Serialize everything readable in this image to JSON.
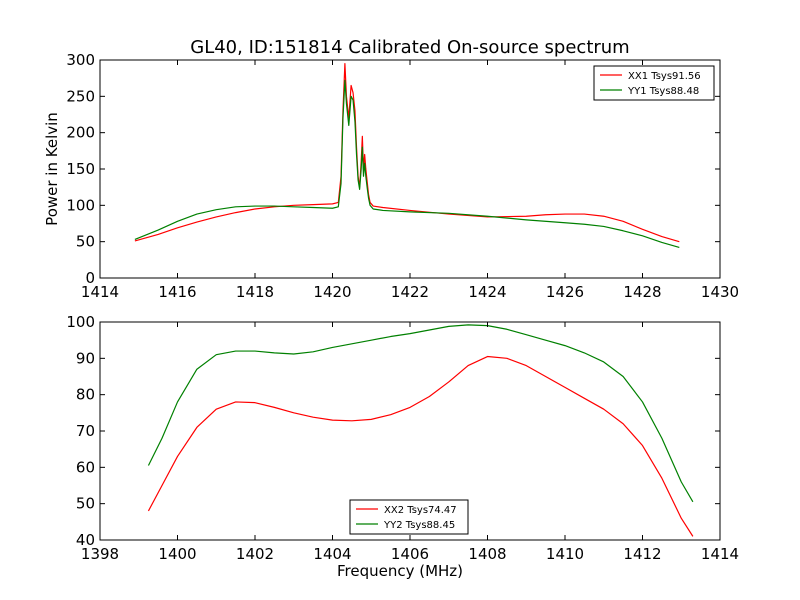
{
  "title": "GL40, ID:151814 Calibrated On-source spectrum",
  "chart_data": [
    {
      "type": "line",
      "ylabel": "Power in Kelvin",
      "xlabel": "",
      "xlim": [
        1414,
        1430
      ],
      "ylim": [
        0,
        300
      ],
      "xticks": [
        "1414",
        "1416",
        "1418",
        "1420",
        "1422",
        "1424",
        "1426",
        "1428",
        "1430"
      ],
      "yticks": [
        "0",
        "50",
        "100",
        "150",
        "200",
        "250",
        "300"
      ],
      "legend_position": "top-right",
      "series": [
        {
          "name": "XX1 Tsys91.56",
          "color": "#ff0000",
          "points": [
            [
              1414.9,
              51
            ],
            [
              1415.5,
              60
            ],
            [
              1416.0,
              69
            ],
            [
              1416.5,
              77
            ],
            [
              1417.0,
              84
            ],
            [
              1417.5,
              90
            ],
            [
              1418.0,
              95
            ],
            [
              1418.5,
              98
            ],
            [
              1419.0,
              100
            ],
            [
              1419.5,
              101
            ],
            [
              1420.0,
              102
            ],
            [
              1420.15,
              104
            ],
            [
              1420.22,
              140
            ],
            [
              1420.27,
              230
            ],
            [
              1420.32,
              295
            ],
            [
              1420.36,
              250
            ],
            [
              1420.42,
              220
            ],
            [
              1420.48,
              265
            ],
            [
              1420.53,
              255
            ],
            [
              1420.58,
              230
            ],
            [
              1420.62,
              180
            ],
            [
              1420.66,
              140
            ],
            [
              1420.7,
              125
            ],
            [
              1420.74,
              160
            ],
            [
              1420.77,
              195
            ],
            [
              1420.8,
              150
            ],
            [
              1420.83,
              170
            ],
            [
              1420.86,
              150
            ],
            [
              1420.9,
              130
            ],
            [
              1420.93,
              115
            ],
            [
              1420.97,
              104
            ],
            [
              1421.05,
              99
            ],
            [
              1421.3,
              97
            ],
            [
              1422.0,
              93
            ],
            [
              1423.0,
              88
            ],
            [
              1424.0,
              84
            ],
            [
              1425.0,
              85
            ],
            [
              1425.5,
              87
            ],
            [
              1426.0,
              88
            ],
            [
              1426.5,
              88
            ],
            [
              1427.0,
              85
            ],
            [
              1427.5,
              78
            ],
            [
              1428.0,
              67
            ],
            [
              1428.5,
              57
            ],
            [
              1428.95,
              50
            ]
          ]
        },
        {
          "name": "YY1 Tsys88.48",
          "color": "#008000",
          "points": [
            [
              1414.9,
              53
            ],
            [
              1415.5,
              66
            ],
            [
              1416.0,
              78
            ],
            [
              1416.5,
              88
            ],
            [
              1417.0,
              94
            ],
            [
              1417.5,
              98
            ],
            [
              1418.0,
              99
            ],
            [
              1418.5,
              99
            ],
            [
              1419.0,
              98
            ],
            [
              1419.5,
              97
            ],
            [
              1420.0,
              96
            ],
            [
              1420.15,
              98
            ],
            [
              1420.22,
              130
            ],
            [
              1420.27,
              220
            ],
            [
              1420.32,
              272
            ],
            [
              1420.36,
              240
            ],
            [
              1420.42,
              210
            ],
            [
              1420.48,
              250
            ],
            [
              1420.53,
              245
            ],
            [
              1420.58,
              215
            ],
            [
              1420.62,
              170
            ],
            [
              1420.66,
              135
            ],
            [
              1420.7,
              122
            ],
            [
              1420.74,
              150
            ],
            [
              1420.77,
              180
            ],
            [
              1420.8,
              140
            ],
            [
              1420.83,
              158
            ],
            [
              1420.86,
              140
            ],
            [
              1420.9,
              122
            ],
            [
              1420.93,
              110
            ],
            [
              1420.97,
              100
            ],
            [
              1421.05,
              95
            ],
            [
              1421.3,
              93
            ],
            [
              1422.0,
              91
            ],
            [
              1423.0,
              89
            ],
            [
              1424.0,
              85
            ],
            [
              1425.0,
              80
            ],
            [
              1426.0,
              76
            ],
            [
              1426.5,
              74
            ],
            [
              1427.0,
              71
            ],
            [
              1427.5,
              65
            ],
            [
              1428.0,
              58
            ],
            [
              1428.5,
              49
            ],
            [
              1428.95,
              42
            ]
          ]
        }
      ]
    },
    {
      "type": "line",
      "ylabel": "",
      "xlabel": "Frequency (MHz)",
      "xlim": [
        1398,
        1414
      ],
      "ylim": [
        40,
        100
      ],
      "xticks": [
        "1398",
        "1400",
        "1402",
        "1404",
        "1406",
        "1408",
        "1410",
        "1412",
        "1414"
      ],
      "yticks": [
        "40",
        "50",
        "60",
        "70",
        "80",
        "90",
        "100"
      ],
      "legend_position": "lower-center",
      "series": [
        {
          "name": "XX2 Tsys74.47",
          "color": "#ff0000",
          "points": [
            [
              1399.25,
              48
            ],
            [
              1399.6,
              55
            ],
            [
              1400.0,
              63
            ],
            [
              1400.5,
              71
            ],
            [
              1401.0,
              76
            ],
            [
              1401.5,
              78
            ],
            [
              1402.0,
              77.8
            ],
            [
              1402.5,
              76.5
            ],
            [
              1403.0,
              75
            ],
            [
              1403.5,
              73.8
            ],
            [
              1404.0,
              73
            ],
            [
              1404.5,
              72.8
            ],
            [
              1405.0,
              73.2
            ],
            [
              1405.5,
              74.5
            ],
            [
              1406.0,
              76.5
            ],
            [
              1406.5,
              79.5
            ],
            [
              1407.0,
              83.5
            ],
            [
              1407.5,
              88
            ],
            [
              1408.0,
              90.5
            ],
            [
              1408.5,
              90
            ],
            [
              1409.0,
              88
            ],
            [
              1409.5,
              85
            ],
            [
              1410.0,
              82
            ],
            [
              1410.5,
              79
            ],
            [
              1411.0,
              76
            ],
            [
              1411.5,
              72
            ],
            [
              1412.0,
              66
            ],
            [
              1412.5,
              57
            ],
            [
              1413.0,
              46
            ],
            [
              1413.3,
              41
            ]
          ]
        },
        {
          "name": "YY2 Tsys88.45",
          "color": "#008000",
          "points": [
            [
              1399.25,
              60.5
            ],
            [
              1399.6,
              68
            ],
            [
              1400.0,
              78
            ],
            [
              1400.5,
              87
            ],
            [
              1401.0,
              91
            ],
            [
              1401.5,
              92
            ],
            [
              1402.0,
              92
            ],
            [
              1402.5,
              91.5
            ],
            [
              1403.0,
              91.2
            ],
            [
              1403.5,
              91.8
            ],
            [
              1404.0,
              93
            ],
            [
              1404.5,
              94
            ],
            [
              1405.0,
              95
            ],
            [
              1405.5,
              96
            ],
            [
              1406.0,
              96.8
            ],
            [
              1406.5,
              97.8
            ],
            [
              1407.0,
              98.8
            ],
            [
              1407.5,
              99.2
            ],
            [
              1408.0,
              99
            ],
            [
              1408.5,
              98
            ],
            [
              1409.0,
              96.5
            ],
            [
              1409.5,
              95
            ],
            [
              1410.0,
              93.5
            ],
            [
              1410.5,
              91.5
            ],
            [
              1411.0,
              89
            ],
            [
              1411.5,
              85
            ],
            [
              1412.0,
              78
            ],
            [
              1412.5,
              68
            ],
            [
              1413.0,
              56
            ],
            [
              1413.3,
              50.5
            ]
          ]
        }
      ]
    }
  ]
}
